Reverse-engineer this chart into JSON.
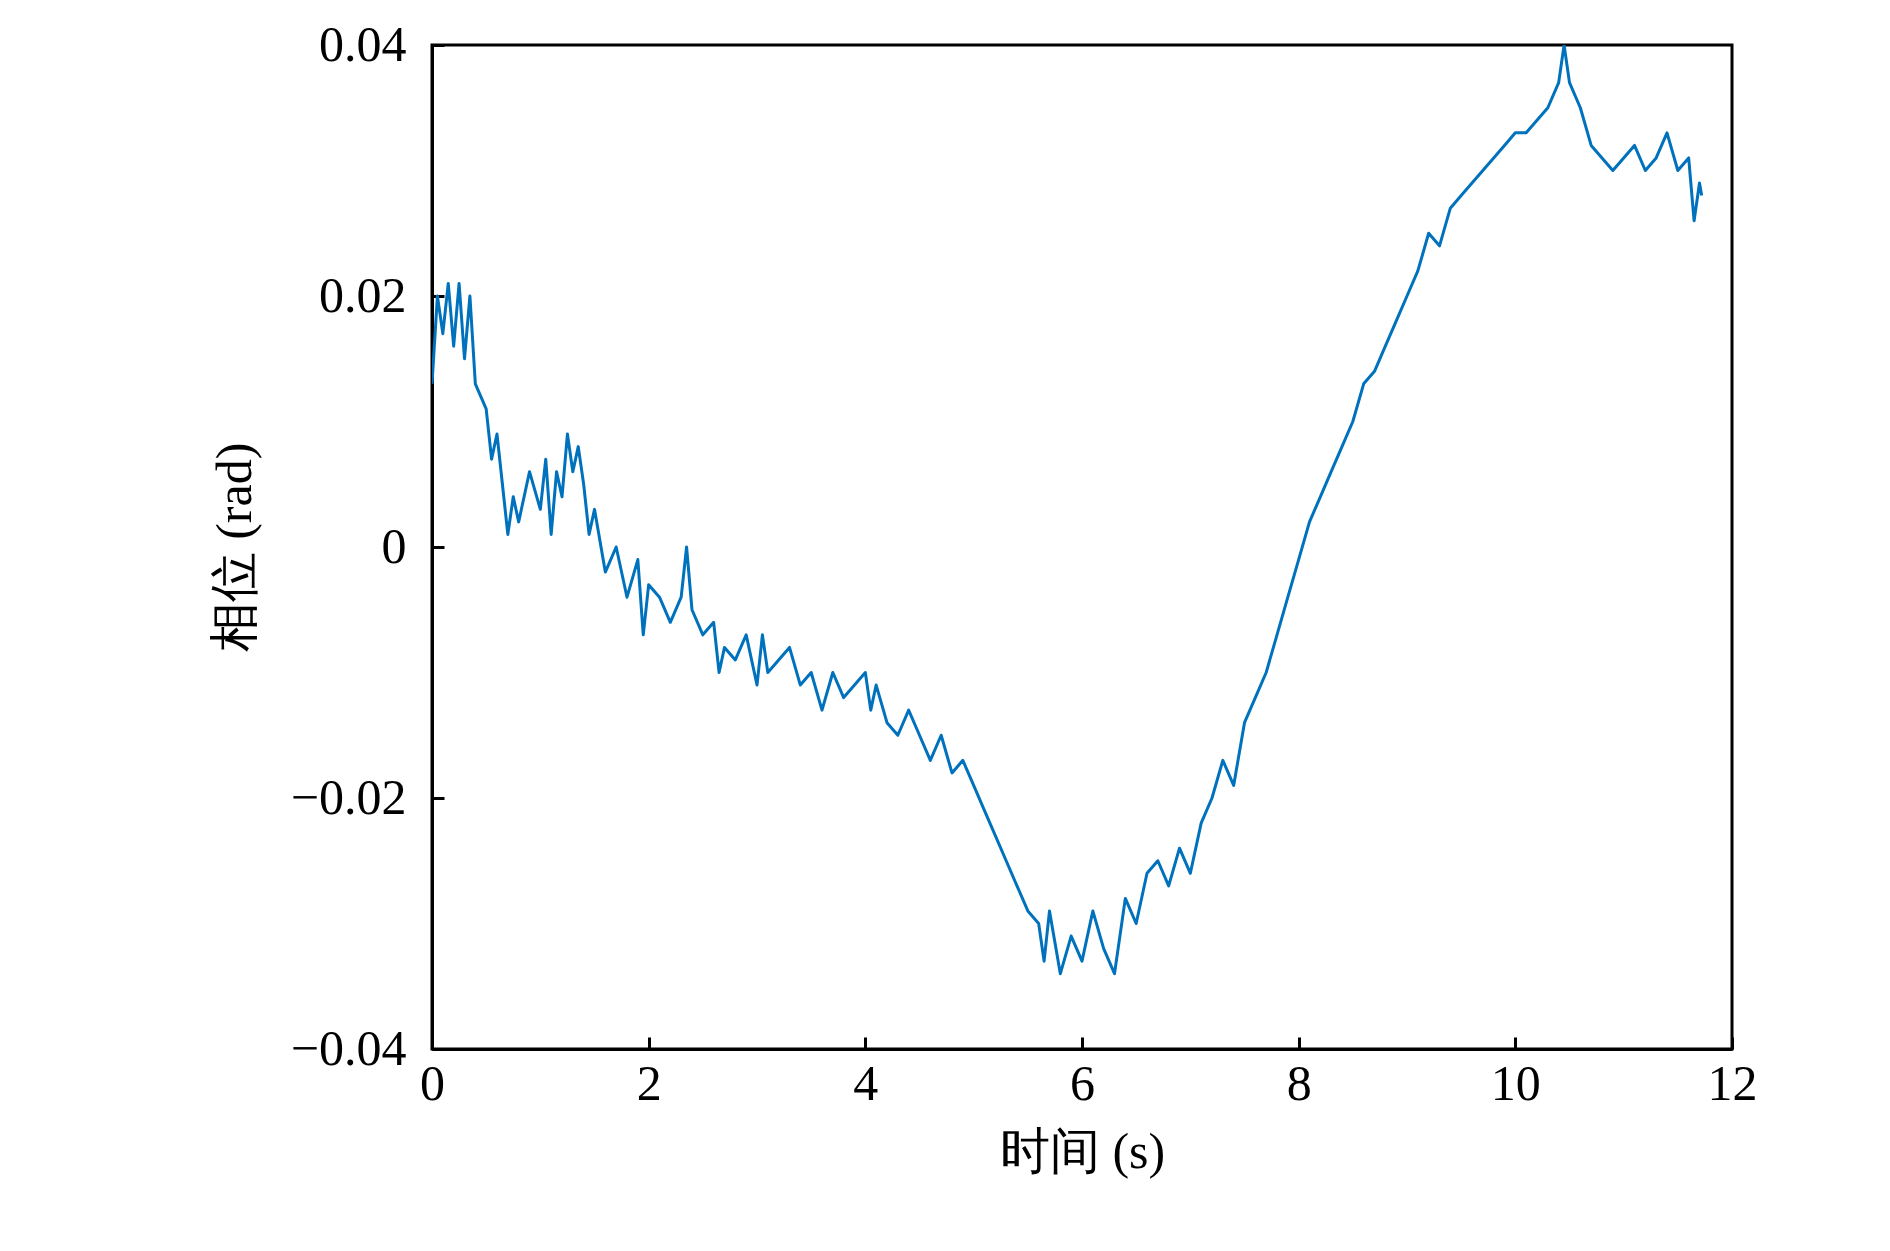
{
  "chart_data": {
    "type": "line",
    "xlabel": "时间 (s)",
    "ylabel": "相位 (rad)",
    "xlim": [
      0,
      12
    ],
    "ylim": [
      -0.04,
      0.04
    ],
    "xticks": [
      0,
      2,
      4,
      6,
      8,
      10,
      12
    ],
    "yticks": [
      {
        "value": -0.04,
        "label": "−0.04"
      },
      {
        "value": -0.02,
        "label": "−0.02"
      },
      0,
      0.02,
      0.04
    ],
    "grid": false,
    "series": [
      {
        "color": "#0072bd",
        "x": [
          0,
          0.05,
          0.1,
          0.15,
          0.2,
          0.25,
          0.3,
          0.35,
          0.4,
          0.45,
          0.5,
          0.55,
          0.6,
          0.65,
          0.7,
          0.75,
          0.8,
          0.9,
          1.0,
          1.05,
          1.1,
          1.15,
          1.2,
          1.25,
          1.3,
          1.35,
          1.4,
          1.45,
          1.5,
          1.6,
          1.7,
          1.8,
          1.9,
          1.95,
          2.0,
          2.1,
          2.2,
          2.3,
          2.35,
          2.4,
          2.5,
          2.6,
          2.65,
          2.7,
          2.8,
          2.9,
          3.0,
          3.05,
          3.1,
          3.2,
          3.3,
          3.4,
          3.5,
          3.6,
          3.7,
          3.8,
          3.9,
          4.0,
          4.05,
          4.1,
          4.2,
          4.3,
          4.4,
          4.5,
          4.6,
          4.7,
          4.8,
          4.9,
          5.0,
          5.1,
          5.2,
          5.3,
          5.4,
          5.5,
          5.6,
          5.65,
          5.7,
          5.8,
          5.9,
          6.0,
          6.1,
          6.2,
          6.3,
          6.4,
          6.5,
          6.6,
          6.7,
          6.8,
          6.9,
          7.0,
          7.1,
          7.2,
          7.3,
          7.4,
          7.5,
          7.6,
          7.7,
          7.8,
          7.9,
          8.0,
          8.1,
          8.2,
          8.3,
          8.4,
          8.5,
          8.6,
          8.7,
          8.8,
          8.9,
          9.0,
          9.1,
          9.2,
          9.3,
          9.4,
          9.5,
          9.6,
          9.7,
          9.8,
          9.9,
          10.0,
          10.1,
          10.2,
          10.3,
          10.4,
          10.45,
          10.5,
          10.6,
          10.7,
          10.8,
          10.9,
          11.0,
          11.1,
          11.2,
          11.3,
          11.4,
          11.5,
          11.6,
          11.65,
          11.7,
          11.72
        ],
        "values": [
          0.013,
          0.02,
          0.017,
          0.021,
          0.016,
          0.021,
          0.015,
          0.02,
          0.013,
          0.012,
          0.011,
          0.007,
          0.009,
          0.005,
          0.001,
          0.004,
          0.002,
          0.006,
          0.003,
          0.007,
          0.001,
          0.006,
          0.004,
          0.009,
          0.006,
          0.008,
          0.005,
          0.001,
          0.003,
          -0.002,
          0.0,
          -0.004,
          -0.001,
          -0.007,
          -0.003,
          -0.004,
          -0.006,
          -0.004,
          0.0,
          -0.005,
          -0.007,
          -0.006,
          -0.01,
          -0.008,
          -0.009,
          -0.007,
          -0.011,
          -0.007,
          -0.01,
          -0.009,
          -0.008,
          -0.011,
          -0.01,
          -0.013,
          -0.01,
          -0.012,
          -0.011,
          -0.01,
          -0.013,
          -0.011,
          -0.014,
          -0.015,
          -0.013,
          -0.015,
          -0.017,
          -0.015,
          -0.018,
          -0.017,
          -0.019,
          -0.021,
          -0.023,
          -0.025,
          -0.027,
          -0.029,
          -0.03,
          -0.033,
          -0.029,
          -0.034,
          -0.031,
          -0.033,
          -0.029,
          -0.032,
          -0.034,
          -0.028,
          -0.03,
          -0.026,
          -0.025,
          -0.027,
          -0.024,
          -0.026,
          -0.022,
          -0.02,
          -0.017,
          -0.019,
          -0.014,
          -0.012,
          -0.01,
          -0.007,
          -0.004,
          -0.001,
          0.002,
          0.004,
          0.006,
          0.008,
          0.01,
          0.013,
          0.014,
          0.016,
          0.018,
          0.02,
          0.022,
          0.025,
          0.024,
          0.027,
          0.028,
          0.029,
          0.03,
          0.031,
          0.032,
          0.033,
          0.033,
          0.034,
          0.035,
          0.037,
          0.04,
          0.037,
          0.035,
          0.032,
          0.031,
          0.03,
          0.031,
          0.032,
          0.03,
          0.031,
          0.033,
          0.03,
          0.031,
          0.026,
          0.029,
          0.028
        ]
      }
    ]
  }
}
